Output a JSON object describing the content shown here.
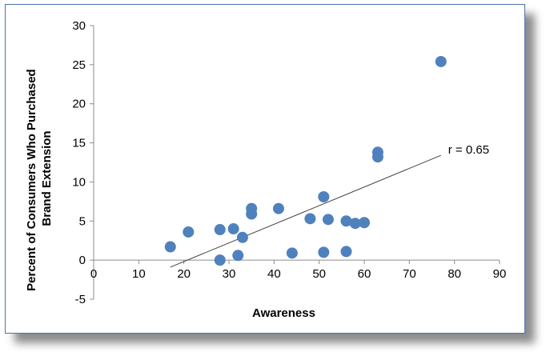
{
  "chart_data": {
    "type": "scatter",
    "xlabel": "Awareness",
    "ylabel_lines": [
      "Percent of Consumers Who Purchased",
      "Brand Extension"
    ],
    "xlim": [
      0,
      90
    ],
    "ylim": [
      -5,
      30
    ],
    "xticks": [
      "0",
      "10",
      "20",
      "30",
      "40",
      "50",
      "60",
      "70",
      "80",
      "90"
    ],
    "yticks": [
      "-5",
      "0",
      "5",
      "10",
      "15",
      "20",
      "25",
      "30"
    ],
    "grid": false,
    "legend": "none",
    "point_color": "#4f81bd",
    "trendline_color": "#404040",
    "trendline": {
      "x1": 17,
      "y1": -0.9,
      "x2": 77,
      "y2": 13.4
    },
    "annotation": "r = 0.65",
    "points": [
      {
        "x": 17,
        "y": 1.7
      },
      {
        "x": 21,
        "y": 3.6
      },
      {
        "x": 28,
        "y": 3.9
      },
      {
        "x": 28,
        "y": 0.0
      },
      {
        "x": 31,
        "y": 4.0
      },
      {
        "x": 32,
        "y": 0.6
      },
      {
        "x": 33,
        "y": 2.9
      },
      {
        "x": 35,
        "y": 6.6
      },
      {
        "x": 35,
        "y": 5.9
      },
      {
        "x": 41,
        "y": 6.6
      },
      {
        "x": 44,
        "y": 0.9
      },
      {
        "x": 48,
        "y": 5.3
      },
      {
        "x": 51,
        "y": 8.1
      },
      {
        "x": 51,
        "y": 1.0
      },
      {
        "x": 52,
        "y": 5.2
      },
      {
        "x": 56,
        "y": 5.0
      },
      {
        "x": 56,
        "y": 1.1
      },
      {
        "x": 58,
        "y": 4.7
      },
      {
        "x": 60,
        "y": 4.8
      },
      {
        "x": 63,
        "y": 13.8
      },
      {
        "x": 63,
        "y": 13.2
      },
      {
        "x": 77,
        "y": 25.4
      }
    ]
  }
}
